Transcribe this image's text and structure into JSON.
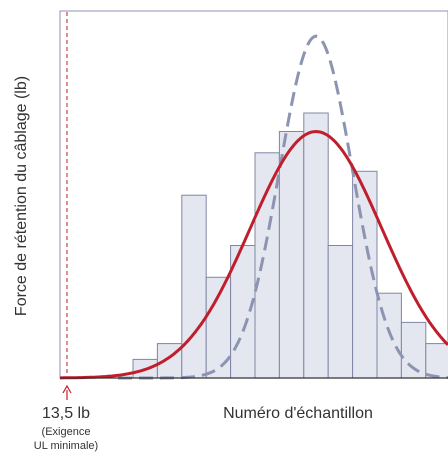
{
  "chart_data": {
    "type": "bar",
    "title": "",
    "xlabel": "Numéro d'échantillon",
    "ylabel": "Force de rétention du câblage (lb)",
    "marker": {
      "value_label": "13,5 lb",
      "note_line1": "(Exigence",
      "note_line2": "UL minimale)"
    },
    "ylim": [
      0,
      100
    ],
    "bins": 13,
    "values": [
      7,
      13,
      69,
      38,
      50,
      85,
      93,
      100,
      50,
      78,
      32,
      21,
      13
    ],
    "series": [
      {
        "kind": "normal_curve",
        "style": "solid",
        "peak_bin": 7,
        "peak_value": 93,
        "sigma_bins": 2.7
      },
      {
        "kind": "normal_curve",
        "style": "dashed",
        "peak_bin": 7,
        "peak_value": 129,
        "sigma_bins": 1.5
      }
    ],
    "colors": {
      "bar_fill": "#e4e7ef",
      "bar_stroke": "#7f87a6",
      "solid_curve": "#c01e2c",
      "dashed_curve": "#8c94b1",
      "marker_line": "#d0404f",
      "axis": "#333333"
    },
    "grid": false
  }
}
